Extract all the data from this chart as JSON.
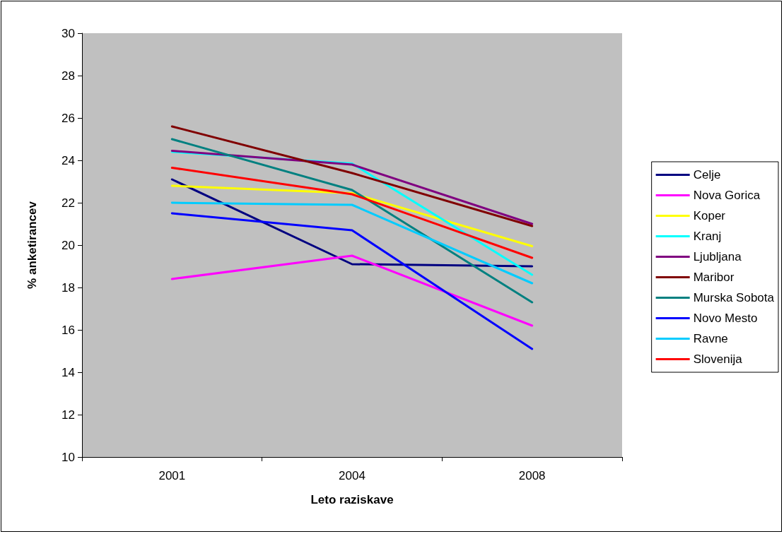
{
  "chart_data": {
    "type": "line",
    "xlabel": "Leto raziskave",
    "ylabel": "% anketirancev",
    "categories": [
      "2001",
      "2004",
      "2008"
    ],
    "ylim": [
      10,
      30
    ],
    "yticks": [
      10,
      12,
      14,
      16,
      18,
      20,
      22,
      24,
      26,
      28,
      30
    ],
    "grid": false,
    "legend": "right",
    "marker": "none",
    "line_style": "solid",
    "series": [
      {
        "name": "Celje",
        "color": "#000080",
        "values": [
          23.1,
          19.1,
          19.0
        ]
      },
      {
        "name": "Nova Gorica",
        "color": "#ff00ff",
        "values": [
          18.4,
          19.5,
          16.2
        ]
      },
      {
        "name": "Koper",
        "color": "#ffff00",
        "values": [
          22.8,
          22.45,
          19.95
        ]
      },
      {
        "name": "Kranj",
        "color": "#00ffff",
        "values": [
          24.4,
          23.85,
          18.6
        ]
      },
      {
        "name": "Ljubljana",
        "color": "#800080",
        "values": [
          24.45,
          23.8,
          21.0
        ]
      },
      {
        "name": "Maribor",
        "color": "#800000",
        "values": [
          25.6,
          23.4,
          20.9
        ]
      },
      {
        "name": "Murska Sobota",
        "color": "#008080",
        "values": [
          25.0,
          22.6,
          17.3
        ]
      },
      {
        "name": "Novo Mesto",
        "color": "#0000ff",
        "values": [
          21.5,
          20.7,
          15.1
        ]
      },
      {
        "name": "Ravne",
        "color": "#00ccff",
        "values": [
          22.0,
          21.9,
          18.2
        ]
      },
      {
        "name": "Slovenija",
        "color": "#ff0000",
        "values": [
          23.65,
          22.4,
          19.4
        ]
      }
    ]
  }
}
